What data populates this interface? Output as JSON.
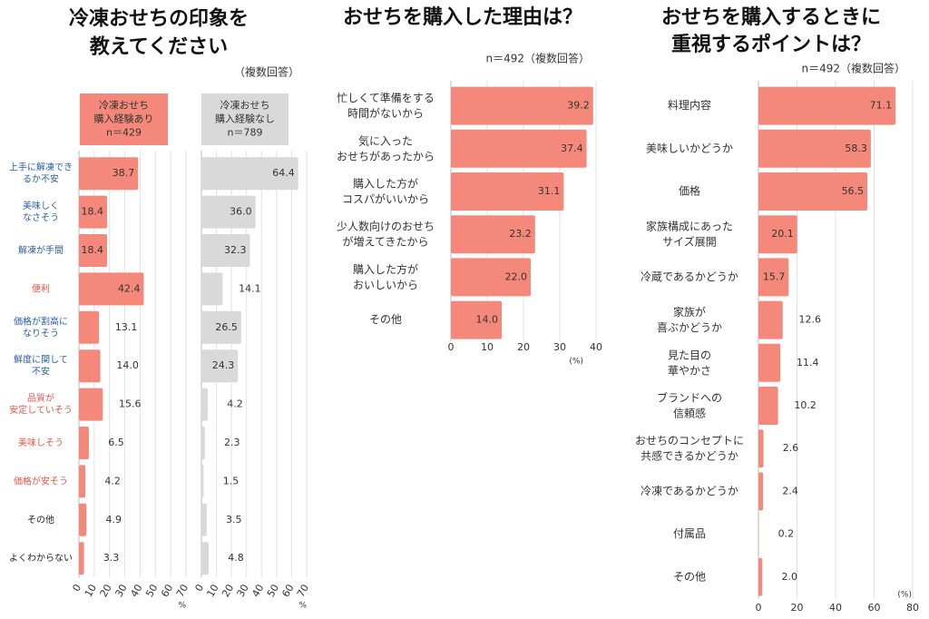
{
  "chart_data": [
    {
      "type": "bar",
      "orientation": "horizontal",
      "title": "冷凍おせちの印象を\n教えてください",
      "note": "（複数回答）",
      "subtitle": "冷凍おせち\n購入経験あり\nn＝429",
      "categories": [
        "上手に解凍でき\nるか不安",
        "美味しく\nなさそう",
        "解凍が手間",
        "便利",
        "価格が割高に\nなりそう",
        "鮮度に関して\n不安",
        "品質が\n安定していそう",
        "美味しそう",
        "価格が安そう",
        "その他",
        "よくわからない"
      ],
      "category_colors": [
        "#2b5fa8",
        "#2b5fa8",
        "#2b5fa8",
        "#e8564a",
        "#2b5fa8",
        "#2b5fa8",
        "#e8564a",
        "#e8564a",
        "#e8564a",
        "#222222",
        "#222222"
      ],
      "values": [
        38.7,
        18.4,
        18.4,
        42.4,
        13.1,
        14.0,
        15.6,
        6.5,
        4.2,
        4.9,
        3.3
      ],
      "value_labels": [
        "38.7",
        "18.4",
        "18.4",
        "42.4",
        "13.1",
        "14.0",
        "15.6",
        "6.5",
        "4.2",
        "4.9",
        "3.3"
      ],
      "color": "#f4897b",
      "xlim": [
        0,
        70
      ],
      "xticks": [
        0,
        10,
        20,
        30,
        40,
        50,
        60,
        70
      ],
      "xlabel": "%",
      "grid": true
    },
    {
      "type": "bar",
      "orientation": "horizontal",
      "subtitle": "冷凍おせち\n購入経験なし\nn＝789",
      "values": [
        64.4,
        36.0,
        32.3,
        14.1,
        26.5,
        24.3,
        4.2,
        2.3,
        1.5,
        3.5,
        4.8
      ],
      "value_labels": [
        "64.4",
        "36.0",
        "32.3",
        "14.1",
        "26.5",
        "24.3",
        "4.2",
        "2.3",
        "1.5",
        "3.5",
        "4.8"
      ],
      "color": "#d9d9d9",
      "xlim": [
        0,
        70
      ],
      "xticks": [
        0,
        10,
        20,
        30,
        40,
        50,
        60,
        70
      ],
      "xlabel": "%",
      "grid": true
    },
    {
      "type": "bar",
      "orientation": "horizontal",
      "title": "おせちを購入した理由は？",
      "note": "n＝492（複数回答）",
      "categories": [
        "忙しくて準備をする\n時間がないから",
        "気に入った\nおせちがあったから",
        "購入した方が\nコスパがいいから",
        "少人数向けのおせち\nが増えてきたから",
        "購入した方が\nおいしいから",
        "その他"
      ],
      "values": [
        39.2,
        37.4,
        31.1,
        23.2,
        22.0,
        14.0
      ],
      "value_labels": [
        "39.2",
        "37.4",
        "31.1",
        "23.2",
        "22.0",
        "14.0"
      ],
      "color": "#f4897b",
      "xlim": [
        0,
        40
      ],
      "xticks": [
        0,
        10,
        20,
        30,
        40
      ],
      "xlabel": "(%)",
      "grid": true
    },
    {
      "type": "bar",
      "orientation": "horizontal",
      "title": "おせちを購入するときに\n重視するポイントは？",
      "note": "n＝492（複数回答）",
      "categories": [
        "料理内容",
        "美味しいかどうか",
        "価格",
        "家族構成にあった\nサイズ展開",
        "冷蔵であるかどうか",
        "家族が\n喜ぶかどうか",
        "見た目の\n華やかさ",
        "ブランドへの\n信頼感",
        "おせちのコンセプトに\n共感できるかどうか",
        "冷凍であるかどうか",
        "付属品",
        "その他"
      ],
      "values": [
        71.1,
        58.3,
        56.5,
        20.1,
        15.7,
        12.6,
        11.4,
        10.2,
        2.6,
        2.4,
        0.2,
        2.0
      ],
      "value_labels": [
        "71.1",
        "58.3",
        "56.5",
        "20.1",
        "15.7",
        "12.6",
        "11.4",
        "10.2",
        "2.6",
        "2.4",
        "0.2",
        "2.0"
      ],
      "color": "#f4897b",
      "xlim": [
        0,
        80
      ],
      "xticks": [
        0,
        20,
        40,
        60,
        80
      ],
      "xlabel": "(%)",
      "grid": true
    }
  ]
}
